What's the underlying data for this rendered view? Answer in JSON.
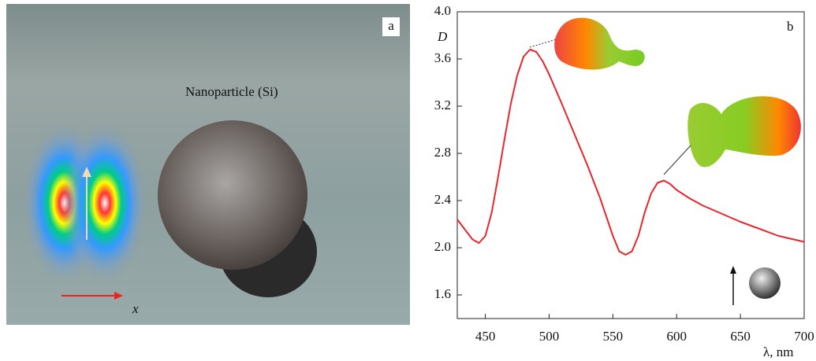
{
  "image_panel": {
    "label": "a",
    "caption": "Nanoparticle (Si)",
    "axis_label": "x"
  },
  "chart_data": {
    "type": "line",
    "panel_label": "b",
    "y_label": "D",
    "x_label": "λ, nm",
    "color": "#e8262b",
    "x": [
      428,
      435,
      440,
      445,
      450,
      455,
      460,
      465,
      470,
      475,
      480,
      485,
      490,
      495,
      500,
      510,
      520,
      530,
      540,
      550,
      555,
      560,
      565,
      570,
      575,
      580,
      585,
      590,
      595,
      600,
      610,
      620,
      635,
      650,
      665,
      680,
      700
    ],
    "values": [
      2.24,
      2.14,
      2.07,
      2.04,
      2.1,
      2.3,
      2.6,
      2.92,
      3.22,
      3.46,
      3.62,
      3.68,
      3.66,
      3.58,
      3.47,
      3.22,
      2.96,
      2.7,
      2.42,
      2.1,
      1.97,
      1.94,
      1.97,
      2.1,
      2.3,
      2.46,
      2.55,
      2.57,
      2.54,
      2.49,
      2.42,
      2.36,
      2.29,
      2.22,
      2.16,
      2.1,
      2.05
    ],
    "xlim": [
      428,
      700
    ],
    "ylim": [
      1.4,
      4.0
    ],
    "xticks": [
      450,
      500,
      550,
      600,
      650,
      700
    ],
    "yticks": [
      {
        "value": 4.0,
        "label": "4.0"
      },
      3.6,
      3.2,
      2.8,
      2.4,
      {
        "value": 2.0,
        "label": "2.0"
      },
      1.6
    ]
  }
}
